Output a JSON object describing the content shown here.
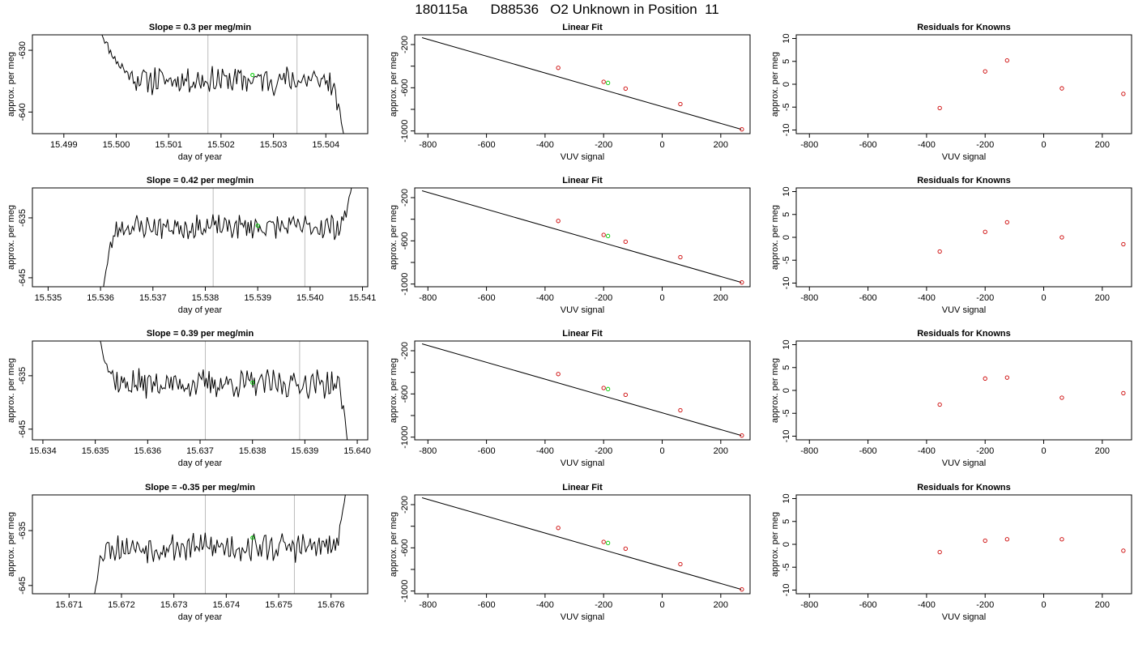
{
  "page": {
    "title": "180115a      D88536   O2 Unknown in Position  11"
  },
  "colors": {
    "trace": "#000000",
    "marker_unknown": "#00cc00",
    "marker_known": "#cc0000",
    "vline": "#bbbbbb",
    "fit_line": "#000000"
  },
  "chart_data": [
    {
      "row": 0,
      "col": 0,
      "type": "line",
      "title": "Slope =  0.3  per meg/min",
      "xlabel": "day of year",
      "ylabel": "approx. per meg",
      "xlim": [
        15.4984,
        15.5048
      ],
      "ylim": [
        -643.5,
        -627.5
      ],
      "xticks": [
        15.499,
        15.5,
        15.501,
        15.502,
        15.503,
        15.504
      ],
      "xtick_labels": [
        "15.499",
        "15.500",
        "15.501",
        "15.502",
        "15.503",
        "15.504"
      ],
      "yticks": [
        -640,
        -630
      ],
      "ytick_labels": [
        "-640",
        "-630"
      ],
      "trace": {
        "x_start": 15.4997,
        "x_end": 15.50435,
        "y_start": -627.0,
        "y_end": -644.0,
        "base": -634.8,
        "amp": 1.9,
        "seed": 11,
        "rise_len": 0.18,
        "tail_len": 0.08
      },
      "vlines": [
        15.50175,
        15.50345
      ],
      "marker": {
        "x": 15.5026,
        "y": -634.0
      }
    },
    {
      "row": 0,
      "col": 1,
      "type": "line",
      "title": "Linear Fit",
      "xlabel": "VUV signal",
      "ylabel": "approx. per meg",
      "xlim": [
        -845,
        300
      ],
      "ylim": [
        -1025,
        -110
      ],
      "xticks": [
        -800,
        -600,
        -400,
        -200,
        0,
        200
      ],
      "xtick_labels": [
        "-800",
        "-600",
        "-400",
        "-200",
        "0",
        "200"
      ],
      "yticks": [
        -1000,
        -800,
        -600,
        -400,
        -200
      ],
      "ytick_labels": [
        "-1000",
        "",
        "-600",
        "",
        "-200"
      ],
      "fit": {
        "x": [
          -820,
          270
        ],
        "y": [
          -136,
          -985
        ]
      },
      "points_known": {
        "x": [
          -355,
          -200,
          -125,
          62,
          272
        ],
        "y": [
          -416,
          -545,
          -608,
          -751,
          -985
        ]
      },
      "point_unknown": {
        "x": -185,
        "y": -555
      }
    },
    {
      "row": 0,
      "col": 2,
      "type": "scatter",
      "title": "Residuals for Knowns",
      "xlabel": "VUV signal",
      "ylabel": "approx. per meg",
      "xlim": [
        -845,
        300
      ],
      "ylim": [
        -10.8,
        10.8
      ],
      "xticks": [
        -800,
        -600,
        -400,
        -200,
        0,
        200
      ],
      "xtick_labels": [
        "-800",
        "-600",
        "-400",
        "-200",
        "0",
        "200"
      ],
      "yticks": [
        -10,
        -5,
        0,
        5,
        10
      ],
      "ytick_labels": [
        "-10",
        "-5",
        "0",
        "5",
        "10"
      ],
      "points_known": {
        "x": [
          -355,
          -200,
          -125,
          62,
          272
        ],
        "y": [
          -5.2,
          2.8,
          5.2,
          -0.9,
          -2.1
        ]
      }
    },
    {
      "row": 1,
      "col": 0,
      "type": "line",
      "title": "Slope =  0.42  per meg/min",
      "xlabel": "day of year",
      "ylabel": "approx. per meg",
      "xlim": [
        15.5347,
        15.5411
      ],
      "ylim": [
        -646.5,
        -630.0
      ],
      "xticks": [
        15.535,
        15.536,
        15.537,
        15.538,
        15.539,
        15.54,
        15.541
      ],
      "xtick_labels": [
        "15.535",
        "15.536",
        "15.537",
        "15.538",
        "15.539",
        "15.540",
        "15.541"
      ],
      "yticks": [
        -645,
        -635
      ],
      "ytick_labels": [
        "-645",
        "-635"
      ],
      "trace": {
        "x_start": 15.53605,
        "x_end": 15.5408,
        "y_start": -647.0,
        "y_end": -629.5,
        "base": -636.5,
        "amp": 1.7,
        "seed": 23,
        "rise_len": 0.07,
        "tail_len": 0.06
      },
      "vlines": [
        15.53815,
        15.5399
      ],
      "marker": {
        "x": 15.539,
        "y": -636.3
      }
    },
    {
      "row": 1,
      "col": 1,
      "type": "line",
      "title": "Linear Fit",
      "xlabel": "VUV signal",
      "ylabel": "approx. per meg",
      "xlim": [
        -845,
        300
      ],
      "ylim": [
        -1025,
        -110
      ],
      "xticks": [
        -800,
        -600,
        -400,
        -200,
        0,
        200
      ],
      "xtick_labels": [
        "-800",
        "-600",
        "-400",
        "-200",
        "0",
        "200"
      ],
      "yticks": [
        -1000,
        -800,
        -600,
        -400,
        -200
      ],
      "ytick_labels": [
        "-1000",
        "",
        "-600",
        "",
        "-200"
      ],
      "fit": {
        "x": [
          -820,
          270
        ],
        "y": [
          -136,
          -985
        ]
      },
      "points_known": {
        "x": [
          -355,
          -200,
          -125,
          62,
          272
        ],
        "y": [
          -416,
          -545,
          -608,
          -751,
          -985
        ]
      },
      "point_unknown": {
        "x": -185,
        "y": -555
      }
    },
    {
      "row": 1,
      "col": 2,
      "type": "scatter",
      "title": "Residuals for Knowns",
      "xlabel": "VUV signal",
      "ylabel": "approx. per meg",
      "xlim": [
        -845,
        300
      ],
      "ylim": [
        -10.8,
        10.8
      ],
      "xticks": [
        -800,
        -600,
        -400,
        -200,
        0,
        200
      ],
      "xtick_labels": [
        "-800",
        "-600",
        "-400",
        "-200",
        "0",
        "200"
      ],
      "yticks": [
        -10,
        -5,
        0,
        5,
        10
      ],
      "ytick_labels": [
        "-10",
        "-5",
        "0",
        "5",
        "10"
      ],
      "points_known": {
        "x": [
          -355,
          -200,
          -125,
          62,
          272
        ],
        "y": [
          -3.1,
          1.2,
          3.3,
          0.0,
          -1.5
        ]
      }
    },
    {
      "row": 2,
      "col": 0,
      "type": "line",
      "title": "Slope =  0.39  per meg/min",
      "xlabel": "day of year",
      "ylabel": "approx. per meg",
      "xlim": [
        15.6338,
        15.6402
      ],
      "ylim": [
        -647.0,
        -628.5
      ],
      "xticks": [
        15.634,
        15.635,
        15.636,
        15.637,
        15.638,
        15.639,
        15.64
      ],
      "xtick_labels": [
        "15.634",
        "15.635",
        "15.636",
        "15.637",
        "15.638",
        "15.639",
        "15.640"
      ],
      "yticks": [
        -645,
        -635
      ],
      "ytick_labels": [
        "-645",
        "-635"
      ],
      "trace": {
        "x_start": 15.63508,
        "x_end": 15.63982,
        "y_start": -628.0,
        "y_end": -648.0,
        "base": -636.5,
        "amp": 2.2,
        "seed": 37,
        "rise_len": 0.09,
        "tail_len": 0.05
      },
      "vlines": [
        15.6371,
        15.6389
      ],
      "marker": {
        "x": 15.638,
        "y": -636.3
      }
    },
    {
      "row": 2,
      "col": 1,
      "type": "line",
      "title": "Linear Fit",
      "xlabel": "VUV signal",
      "ylabel": "approx. per meg",
      "xlim": [
        -845,
        300
      ],
      "ylim": [
        -1025,
        -110
      ],
      "xticks": [
        -800,
        -600,
        -400,
        -200,
        0,
        200
      ],
      "xtick_labels": [
        "-800",
        "-600",
        "-400",
        "-200",
        "0",
        "200"
      ],
      "yticks": [
        -1000,
        -800,
        -600,
        -400,
        -200
      ],
      "ytick_labels": [
        "-1000",
        "",
        "-600",
        "",
        "-200"
      ],
      "fit": {
        "x": [
          -820,
          270
        ],
        "y": [
          -136,
          -985
        ]
      },
      "points_known": {
        "x": [
          -355,
          -200,
          -125,
          62,
          272
        ],
        "y": [
          -416,
          -545,
          -608,
          -751,
          -985
        ]
      },
      "point_unknown": {
        "x": -185,
        "y": -555
      }
    },
    {
      "row": 2,
      "col": 2,
      "type": "scatter",
      "title": "Residuals for Knowns",
      "xlabel": "VUV signal",
      "ylabel": "approx. per meg",
      "xlim": [
        -845,
        300
      ],
      "ylim": [
        -10.8,
        10.8
      ],
      "xticks": [
        -800,
        -600,
        -400,
        -200,
        0,
        200
      ],
      "xtick_labels": [
        "-800",
        "-600",
        "-400",
        "-200",
        "0",
        "200"
      ],
      "yticks": [
        -10,
        -5,
        0,
        5,
        10
      ],
      "ytick_labels": [
        "-10",
        "-5",
        "0",
        "5",
        "10"
      ],
      "points_known": {
        "x": [
          -355,
          -200,
          -125,
          62,
          272
        ],
        "y": [
          -3.1,
          2.6,
          2.8,
          -1.6,
          -0.6
        ]
      }
    },
    {
      "row": 3,
      "col": 0,
      "type": "line",
      "title": "Slope =  -0.35  per meg/min",
      "xlabel": "day of year",
      "ylabel": "approx. per meg",
      "xlim": [
        15.6703,
        15.6767
      ],
      "ylim": [
        -646.5,
        -628.5
      ],
      "xticks": [
        15.671,
        15.672,
        15.673,
        15.674,
        15.675,
        15.676
      ],
      "xtick_labels": [
        "15.671",
        "15.672",
        "15.673",
        "15.674",
        "15.675",
        "15.676"
      ],
      "yticks": [
        -645,
        -635
      ],
      "ytick_labels": [
        "-645",
        "-635"
      ],
      "trace": {
        "x_start": 15.67148,
        "x_end": 15.67628,
        "y_start": -647.0,
        "y_end": -628.0,
        "base": -638.0,
        "amp": 2.2,
        "seed": 53,
        "rise_len": 0.05,
        "tail_len": 0.05
      },
      "vlines": [
        15.6736,
        15.6753
      ],
      "marker": {
        "x": 15.6745,
        "y": -636.3
      }
    },
    {
      "row": 3,
      "col": 1,
      "type": "line",
      "title": "Linear Fit",
      "xlabel": "VUV signal",
      "ylabel": "approx. per meg",
      "xlim": [
        -845,
        300
      ],
      "ylim": [
        -1025,
        -110
      ],
      "xticks": [
        -800,
        -600,
        -400,
        -200,
        0,
        200
      ],
      "xtick_labels": [
        "-800",
        "-600",
        "-400",
        "-200",
        "0",
        "200"
      ],
      "yticks": [
        -1000,
        -800,
        -600,
        -400,
        -200
      ],
      "ytick_labels": [
        "-1000",
        "",
        "-600",
        "",
        "-200"
      ],
      "fit": {
        "x": [
          -820,
          270
        ],
        "y": [
          -136,
          -985
        ]
      },
      "points_known": {
        "x": [
          -355,
          -200,
          -125,
          62,
          272
        ],
        "y": [
          -416,
          -545,
          -608,
          -751,
          -985
        ]
      },
      "point_unknown": {
        "x": -185,
        "y": -555
      }
    },
    {
      "row": 3,
      "col": 2,
      "type": "scatter",
      "title": "Residuals for Knowns",
      "xlabel": "VUV signal",
      "ylabel": "approx. per meg",
      "xlim": [
        -845,
        300
      ],
      "ylim": [
        -10.8,
        10.8
      ],
      "xticks": [
        -800,
        -600,
        -400,
        -200,
        0,
        200
      ],
      "xtick_labels": [
        "-800",
        "-600",
        "-400",
        "-200",
        "0",
        "200"
      ],
      "yticks": [
        -10,
        -5,
        0,
        5,
        10
      ],
      "ytick_labels": [
        "-10",
        "-5",
        "0",
        "5",
        "10"
      ],
      "points_known": {
        "x": [
          -355,
          -200,
          -125,
          62,
          272
        ],
        "y": [
          -1.7,
          0.8,
          1.1,
          1.1,
          -1.4
        ]
      }
    }
  ]
}
